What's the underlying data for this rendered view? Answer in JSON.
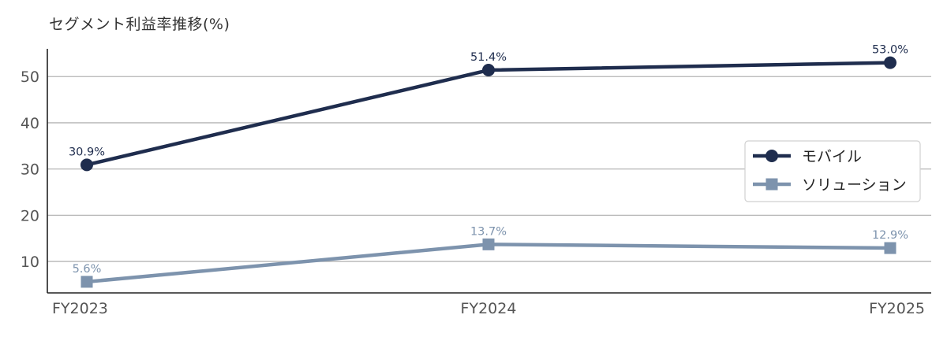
{
  "chart_data": {
    "type": "line",
    "title": "セグメント利益率推移(%)",
    "xlabel": "",
    "ylabel": "",
    "categories": [
      "FY2023",
      "FY2024",
      "FY2025"
    ],
    "yticks": [
      10,
      20,
      30,
      40,
      50
    ],
    "ylim": [
      3.2,
      56
    ],
    "grid": true,
    "legend_position": "right",
    "series": [
      {
        "name": "モバイル",
        "values": [
          30.9,
          51.4,
          53.0
        ],
        "labels": [
          "30.9%",
          "51.4%",
          "53.0%"
        ],
        "color": "#1f2d4e",
        "marker": "circle"
      },
      {
        "name": "ソリューション",
        "values": [
          5.6,
          13.7,
          12.9
        ],
        "labels": [
          "5.6%",
          "13.7%",
          "12.9%"
        ],
        "color": "#7d93ad",
        "marker": "square"
      }
    ]
  }
}
